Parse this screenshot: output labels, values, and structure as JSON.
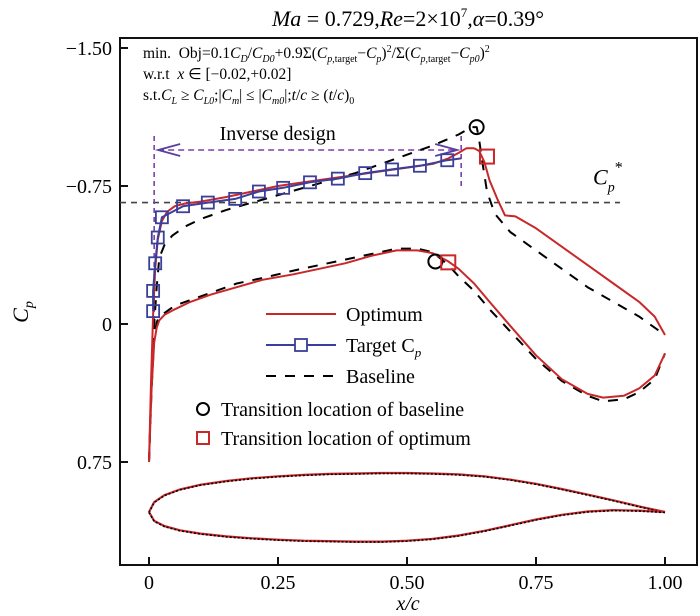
{
  "chart_data": {
    "type": "line",
    "title": "Ma = 0.729,Re=2×10⁷,α=0.39°",
    "title_parts": {
      "ma": "Ma",
      "ma_val": " = 0.729,",
      "re": "Re",
      "re_val": "=2×10",
      "re_exp": "7",
      "alpha": ",α",
      "alpha_val": "=0.39°"
    },
    "xlabel": "x/c",
    "ylabel": "C",
    "ylabel_sub": "p",
    "xlim": [
      0,
      1.0
    ],
    "ylim_top": -1.5,
    "ylim_bottom": 1.06,
    "y_inverted": true,
    "xticks": [
      0,
      0.25,
      0.5,
      0.75,
      1.0
    ],
    "xtick_labels": [
      "0",
      "0.25",
      "0.50",
      "0.75",
      "1.00"
    ],
    "yticks": [
      -1.5,
      -0.75,
      0,
      0.75
    ],
    "ytick_labels": [
      "−1.50",
      "−0.75",
      "0",
      "0.75"
    ],
    "grid": false,
    "legend_position": "center",
    "annotations": {
      "objective_lines": [
        "min.  Obj=0.1C_D/C_D0+0.9Σ(C_p,target−C_p)²/Σ(C_p,target−C_p0)²",
        "w.r.t  x∈[−0.02,+0.02]",
        "s.t.C_L≥C_L0;|C_m|≤|C_m0|;t/c≥(t/c)_0"
      ],
      "inverse_design_label": "Inverse design",
      "inverse_design_range": [
        0.01,
        0.605
      ],
      "cp_star_label": "C",
      "cp_star_sub": "p",
      "cp_star_sup": "*",
      "cp_star_value": -0.66
    },
    "legend": [
      {
        "label": "Optimum",
        "style": "solid",
        "color": "#c8282a"
      },
      {
        "label": "Target C",
        "label_sub": "p",
        "style": "solid-square",
        "color": "#3a3f9a"
      },
      {
        "label": "Baseline",
        "style": "dashed",
        "color": "#000000"
      },
      {
        "label": "Transition location of baseline",
        "style": "circle",
        "color": "#000000"
      },
      {
        "label": "Transition location of optimum",
        "style": "square",
        "color": "#c8282a"
      }
    ],
    "series": [
      {
        "name": "Optimum upper",
        "color": "#c8282a",
        "x": [
          0.0,
          0.004,
          0.008,
          0.012,
          0.017,
          0.025,
          0.035,
          0.05,
          0.07,
          0.1,
          0.15,
          0.2,
          0.25,
          0.3,
          0.35,
          0.4,
          0.45,
          0.5,
          0.55,
          0.58,
          0.6,
          0.615,
          0.63,
          0.64,
          0.65,
          0.66,
          0.675,
          0.69,
          0.71,
          0.75,
          0.8,
          0.85,
          0.9,
          0.95,
          0.98,
          1.0
        ],
        "y": [
          0.75,
          0.3,
          -0.05,
          -0.3,
          -0.46,
          -0.56,
          -0.61,
          -0.64,
          -0.655,
          -0.665,
          -0.69,
          -0.72,
          -0.75,
          -0.77,
          -0.79,
          -0.81,
          -0.83,
          -0.85,
          -0.87,
          -0.9,
          -0.93,
          -0.955,
          -0.955,
          -0.94,
          -0.88,
          -0.78,
          -0.68,
          -0.59,
          -0.585,
          -0.52,
          -0.42,
          -0.32,
          -0.22,
          -0.12,
          -0.04,
          0.06
        ]
      },
      {
        "name": "Optimum lower",
        "color": "#c8282a",
        "x": [
          0.0,
          0.005,
          0.01,
          0.015,
          0.02,
          0.03,
          0.05,
          0.08,
          0.12,
          0.17,
          0.22,
          0.28,
          0.33,
          0.38,
          0.43,
          0.48,
          0.52,
          0.55,
          0.58,
          0.6,
          0.63,
          0.66,
          0.7,
          0.75,
          0.8,
          0.85,
          0.88,
          0.92,
          0.95,
          0.98,
          1.0
        ],
        "y": [
          0.75,
          0.35,
          0.1,
          0.02,
          -0.02,
          -0.05,
          -0.08,
          -0.12,
          -0.16,
          -0.2,
          -0.24,
          -0.27,
          -0.3,
          -0.33,
          -0.37,
          -0.4,
          -0.4,
          -0.385,
          -0.34,
          -0.3,
          -0.22,
          -0.12,
          0.01,
          0.17,
          0.3,
          0.38,
          0.4,
          0.39,
          0.35,
          0.28,
          0.16
        ]
      },
      {
        "name": "Baseline upper",
        "color": "#000000",
        "dashed": true,
        "x": [
          0.0,
          0.005,
          0.01,
          0.015,
          0.02,
          0.03,
          0.045,
          0.07,
          0.1,
          0.15,
          0.2,
          0.25,
          0.3,
          0.35,
          0.4,
          0.45,
          0.5,
          0.55,
          0.6,
          0.625,
          0.635,
          0.64,
          0.645,
          0.655,
          0.67,
          0.7,
          0.75,
          0.8,
          0.85,
          0.9,
          0.95,
          0.98,
          1.0
        ],
        "y": [
          0.75,
          0.3,
          0.0,
          -0.2,
          -0.36,
          -0.43,
          -0.48,
          -0.53,
          -0.57,
          -0.62,
          -0.66,
          -0.7,
          -0.74,
          -0.78,
          -0.82,
          -0.87,
          -0.92,
          -0.97,
          -1.03,
          -1.07,
          -1.07,
          -1.0,
          -0.9,
          -0.72,
          -0.6,
          -0.5,
          -0.4,
          -0.3,
          -0.2,
          -0.12,
          -0.04,
          0.02,
          0.06
        ]
      },
      {
        "name": "Baseline lower",
        "color": "#000000",
        "dashed": true,
        "x": [
          0.0,
          0.005,
          0.01,
          0.015,
          0.02,
          0.03,
          0.05,
          0.08,
          0.12,
          0.17,
          0.22,
          0.28,
          0.33,
          0.38,
          0.43,
          0.48,
          0.52,
          0.55,
          0.58,
          0.6,
          0.63,
          0.66,
          0.7,
          0.75,
          0.8,
          0.85,
          0.88,
          0.92,
          0.95,
          0.98,
          1.0
        ],
        "y": [
          0.75,
          0.35,
          0.08,
          -0.01,
          -0.04,
          -0.06,
          -0.1,
          -0.13,
          -0.17,
          -0.22,
          -0.25,
          -0.29,
          -0.32,
          -0.35,
          -0.38,
          -0.41,
          -0.41,
          -0.39,
          -0.32,
          -0.26,
          -0.18,
          -0.08,
          0.04,
          0.19,
          0.31,
          0.39,
          0.42,
          0.41,
          0.37,
          0.3,
          0.16
        ]
      },
      {
        "name": "Target Cp",
        "color": "#3a3f9a",
        "markers": "square",
        "x": [
          0.008,
          0.008,
          0.012,
          0.017,
          0.025,
          0.066,
          0.114,
          0.167,
          0.213,
          0.26,
          0.312,
          0.366,
          0.419,
          0.471,
          0.525,
          0.578,
          0.605
        ],
        "y": [
          -0.07,
          -0.18,
          -0.33,
          -0.47,
          -0.58,
          -0.64,
          -0.66,
          -0.68,
          -0.72,
          -0.74,
          -0.77,
          -0.79,
          -0.82,
          -0.84,
          -0.86,
          -0.89,
          -0.9
        ],
        "marker_count": 16
      }
    ],
    "transition_points": {
      "baseline": [
        {
          "x": 0.635,
          "y": -1.07
        },
        {
          "x": 0.555,
          "y": -0.34
        }
      ],
      "optimum": [
        {
          "x": 0.655,
          "y": -0.91
        },
        {
          "x": 0.58,
          "y": -0.335
        }
      ]
    },
    "airfoil": {
      "upper": {
        "x": [
          0.0,
          0.01,
          0.03,
          0.06,
          0.1,
          0.15,
          0.2,
          0.25,
          0.3,
          0.35,
          0.4,
          0.45,
          0.5,
          0.55,
          0.6,
          0.65,
          0.7,
          0.75,
          0.8,
          0.85,
          0.9,
          0.95,
          1.0
        ],
        "t": [
          0.0,
          0.021,
          0.036,
          0.048,
          0.058,
          0.066,
          0.072,
          0.076,
          0.079,
          0.081,
          0.082,
          0.083,
          0.083,
          0.082,
          0.08,
          0.076,
          0.069,
          0.06,
          0.049,
          0.037,
          0.025,
          0.012,
          0.0
        ]
      },
      "lower": {
        "x": [
          0.0,
          0.01,
          0.03,
          0.06,
          0.1,
          0.15,
          0.2,
          0.25,
          0.3,
          0.35,
          0.4,
          0.45,
          0.5,
          0.55,
          0.6,
          0.65,
          0.7,
          0.75,
          0.8,
          0.85,
          0.9,
          0.95,
          1.0
        ],
        "t": [
          0.0,
          -0.019,
          -0.03,
          -0.039,
          -0.046,
          -0.052,
          -0.056,
          -0.059,
          -0.061,
          -0.062,
          -0.063,
          -0.063,
          -0.061,
          -0.057,
          -0.05,
          -0.04,
          -0.028,
          -0.016,
          -0.006,
          0.001,
          0.004,
          0.003,
          0.0
        ]
      }
    }
  }
}
